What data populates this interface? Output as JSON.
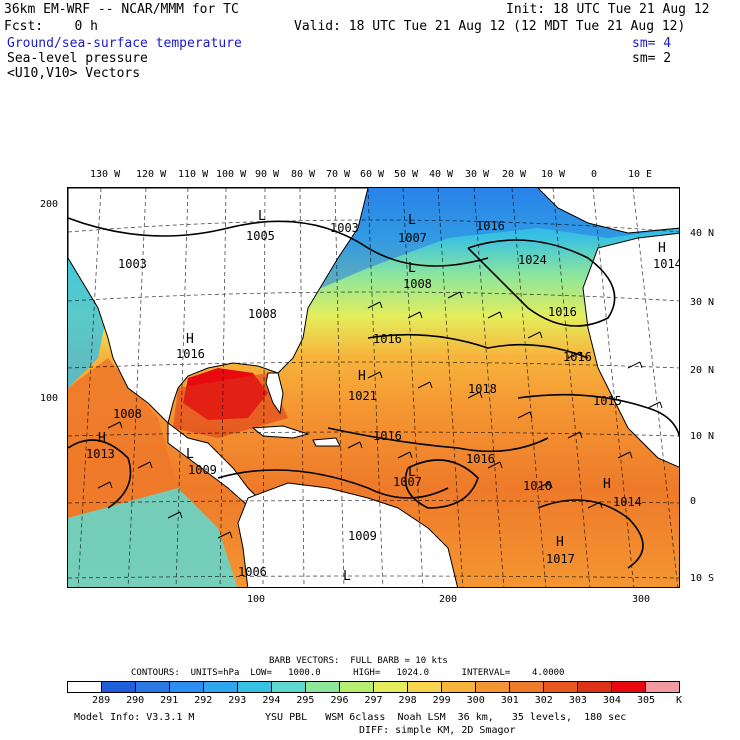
{
  "header": {
    "title_left": "36km EM-WRF -- NCAR/MMM for TC",
    "init": "Init: 18 UTC Tue 21 Aug 12",
    "fcst": "Fcst:    0 h",
    "valid": "Valid: 18 UTC Tue 21 Aug 12 (12 MDT Tue 21 Aug 12)",
    "field1": "Ground/sea-surface temperature",
    "field1_sm": "sm= 4",
    "field2": "Sea-level pressure",
    "field2_sm": "sm= 2",
    "field3": "<U10,V10> Vectors"
  },
  "axes": {
    "lon_labels": [
      "130 W",
      "120 W",
      "110 W",
      "100 W",
      "90 W",
      "80 W",
      "70 W",
      "60 W",
      "50 W",
      "40 W",
      "30 W",
      "20 W",
      "10 W",
      "0",
      "10 E"
    ],
    "lat_labels": [
      "40 N",
      "30 N",
      "20 N",
      "10 N",
      "0",
      "10 S"
    ],
    "left_labels": [
      "200",
      "100"
    ],
    "bottom_labels": [
      "100",
      "200",
      "300"
    ]
  },
  "map": {
    "pressure_labels": [
      "1005",
      "1003",
      "1007",
      "1016",
      "1003",
      "1008",
      "1024",
      "1016",
      "1016",
      "1016",
      "1016",
      "1021",
      "1018",
      "1015",
      "1016",
      "1016",
      "1013",
      "1007",
      "1016",
      "1014",
      "1009",
      "1006",
      "1017",
      "1014",
      "1009",
      "1008",
      "1008"
    ],
    "centers": [
      "L",
      "L",
      "L",
      "H",
      "H",
      "H",
      "H",
      "H",
      "H",
      "L",
      "L",
      "L"
    ],
    "colors": {
      "land": "#ffffff",
      "coast": "#000000",
      "isobar": "#000000"
    }
  },
  "footer": {
    "barb_line": "BARB VECTORS:  FULL BARB = 10 kts",
    "contours_line": "CONTOURS:  UNITS=hPa  LOW=   1000.0      HIGH=   1024.0      INTERVAL=    4.0000",
    "scale_labels": [
      "289",
      "290",
      "291",
      "292",
      "293",
      "294",
      "295",
      "296",
      "297",
      "298",
      "299",
      "300",
      "301",
      "302",
      "303",
      "304",
      "305"
    ],
    "scale_unit": "K",
    "scale_colors": [
      "#ffffff",
      "#1f5fdc",
      "#2a78e4",
      "#2a8ff0",
      "#30a6ef",
      "#38c1e4",
      "#5ed9d2",
      "#8ee69b",
      "#b8ee70",
      "#e4ee5c",
      "#f7d54d",
      "#f7b43c",
      "#f49632",
      "#ee7a2a",
      "#e85a22",
      "#dd3418",
      "#e80a10",
      "#f29aa2"
    ],
    "model_info": "Model Info: V3.3.1 M",
    "physics_line1": "YSU PBL   WSM 6class  Noah LSM  36 km,   35 levels,  180 sec",
    "physics_line2": "DIFF: simple KM, 2D Smagor"
  }
}
